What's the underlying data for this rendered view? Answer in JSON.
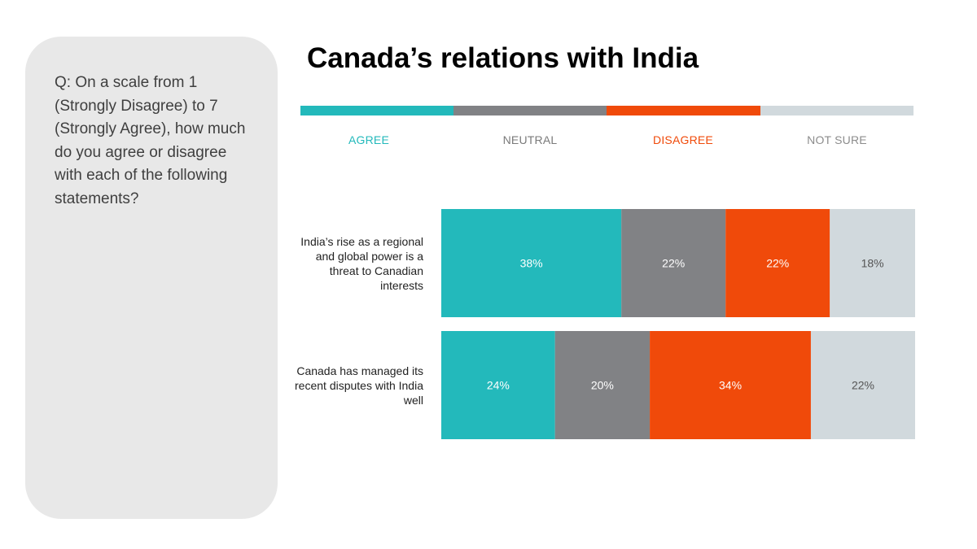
{
  "question": "Q: On a scale from 1 (Strongly Disagree) to 7 (Strongly Agree), how much do you agree or disagree with each of the following statements?",
  "chart_data": {
    "type": "bar",
    "orientation": "horizontal",
    "stacked": true,
    "title": "Canada’s relations with India",
    "legend_position": "top",
    "categories": [
      "India’s rise as a regional and global power is a threat to Canadian interests",
      "Canada has managed its recent disputes with India well"
    ],
    "series": [
      {
        "name": "AGREE",
        "color": "#23b9bb",
        "label_color": "#ffffff",
        "values": [
          38,
          24
        ],
        "labels": [
          "38%",
          "24%"
        ]
      },
      {
        "name": "NEUTRAL",
        "color": "#818285",
        "label_color": "#ffffff",
        "values": [
          22,
          20
        ],
        "labels": [
          "22%",
          "20%"
        ]
      },
      {
        "name": "DISAGREE",
        "color": "#f04a0a",
        "label_color": "#ffffff",
        "values": [
          22,
          34
        ],
        "labels": [
          "22%",
          "34%"
        ]
      },
      {
        "name": "NOT SURE",
        "color": "#d1d9dd",
        "label_color": "#555555",
        "values": [
          18,
          22
        ],
        "labels": [
          "18%",
          "22%"
        ]
      }
    ],
    "legend_label_colors": [
      "#23b9bb",
      "#7a7a7a",
      "#f04a0a",
      "#8c8c8c"
    ]
  }
}
